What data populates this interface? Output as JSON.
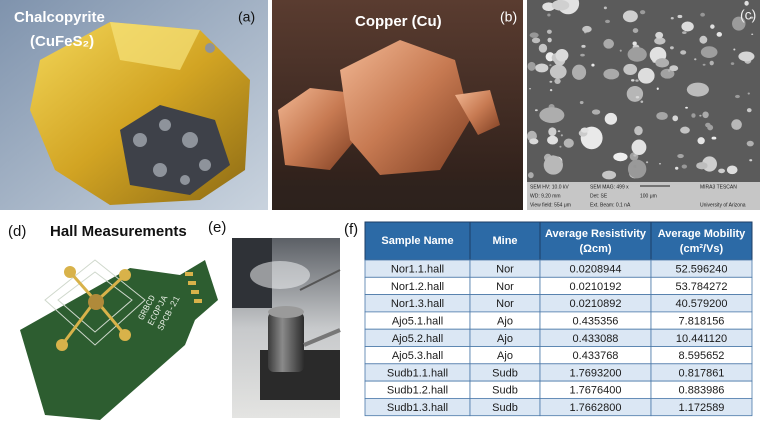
{
  "panels": {
    "a": {
      "label": "(a)",
      "title": "Chalcopyrite",
      "formula": "(CuFeS₂)"
    },
    "b": {
      "label": "(b)",
      "title": "Copper (Cu)"
    },
    "c": {
      "label": "(c)",
      "info": [
        "SEM HV: 10.0 kV",
        "SEM MAG: 499 x",
        "MIRA3 TESCAN",
        "WD: 9.20 mm",
        "Det: SE",
        "100 μm",
        "View field: 554 μm",
        "Ext. Beam: 0.1 nA",
        "University of Arizona"
      ]
    },
    "d": {
      "label": "(d)",
      "title": "Hall Measurements",
      "board": [
        "GRBCD",
        "ECOPJA",
        "SPCB-21"
      ]
    },
    "e": {
      "label": "(e)"
    },
    "f": {
      "label": "(f)"
    }
  },
  "table": {
    "header": [
      "Sample Name",
      "Mine",
      [
        "Average Resistivity",
        "(Ωcm)"
      ],
      [
        "Average Mobility",
        "(cm²/Vs)"
      ]
    ],
    "rows": [
      [
        "Nor1.1.hall",
        "Nor",
        "0.0208944",
        "52.596240"
      ],
      [
        "Nor1.2.hall",
        "Nor",
        "0.0210192",
        "53.784272"
      ],
      [
        "Nor1.3.hall",
        "Nor",
        "0.0210892",
        "40.579200"
      ],
      [
        "Ajo5.1.hall",
        "Ajo",
        "0.435356",
        "7.818156"
      ],
      [
        "Ajo5.2.hall",
        "Ajo",
        "0.433088",
        "10.441120"
      ],
      [
        "Ajo5.3.hall",
        "Ajo",
        "0.433768",
        "8.595652"
      ],
      [
        "Sudb1.1.hall",
        "Sudb",
        "1.7693200",
        "0.817861"
      ],
      [
        "Sudb1.2.hall",
        "Sudb",
        "1.7676400",
        "0.883986"
      ],
      [
        "Sudb1.3.hall",
        "Sudb",
        "1.7662800",
        "1.172589"
      ]
    ]
  }
}
